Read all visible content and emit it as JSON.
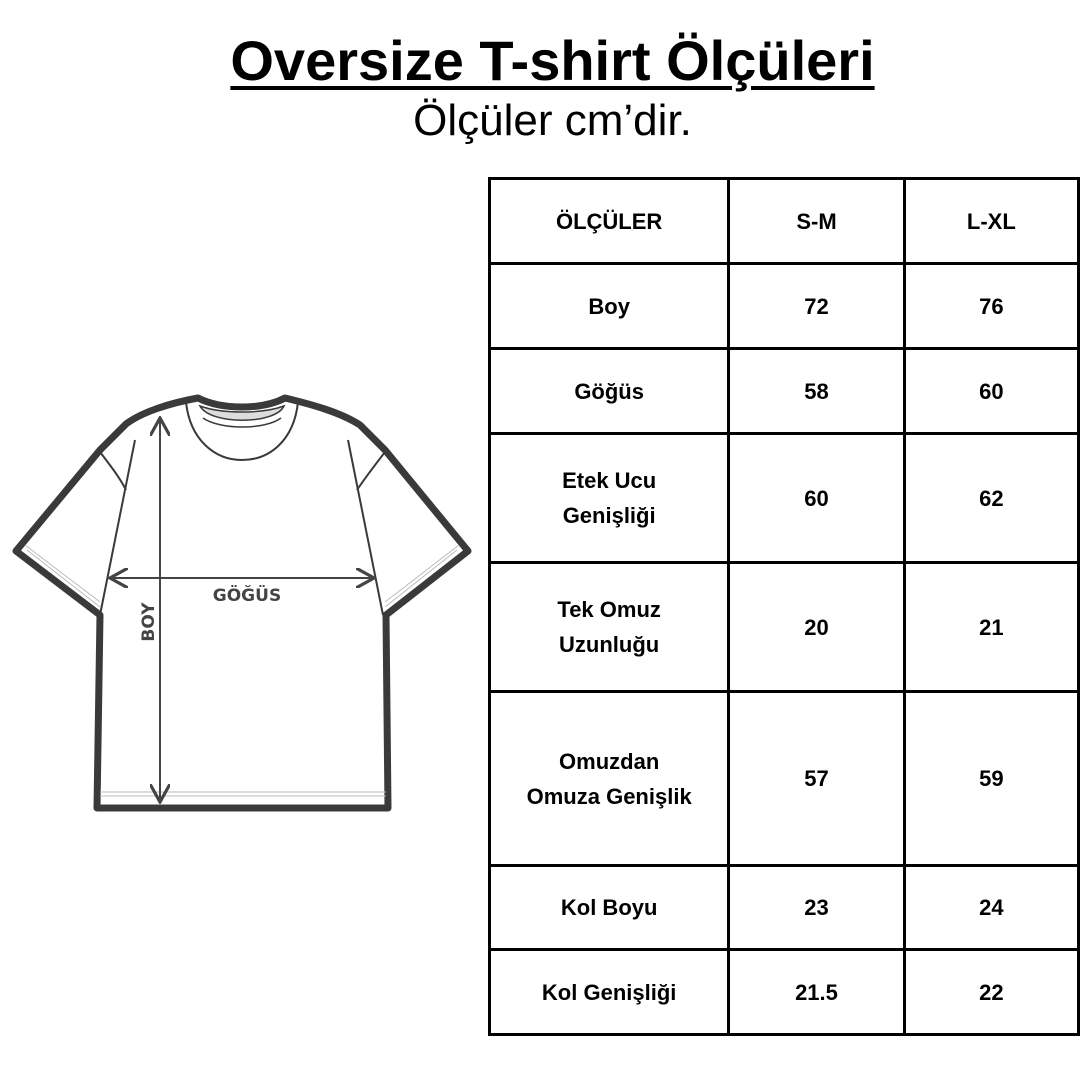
{
  "title": "Oversize T-shirt Ölçüleri",
  "subtitle": "Ölçüler cm’dir.",
  "diagram": {
    "chest_label": "GÖĞÜS",
    "length_label": "BOY"
  },
  "table": {
    "headers": [
      "ÖLÇÜLER",
      "S-M",
      "L-XL"
    ],
    "rows": [
      {
        "label": "Boy",
        "sm": "72",
        "lxl": "76"
      },
      {
        "label": "Göğüs",
        "sm": "58",
        "lxl": "60"
      },
      {
        "label": "Etek Ucu Genişliği",
        "sm": "60",
        "lxl": "62"
      },
      {
        "label": "Tek Omuz Uzunluğu",
        "sm": "20",
        "lxl": "21"
      },
      {
        "label": "Omuzdan Omuza Genişlik",
        "sm": "57",
        "lxl": "59"
      },
      {
        "label": "Kol Boyu",
        "sm": "23",
        "lxl": "24"
      },
      {
        "label": "Kol Genişliği",
        "sm": "21.5",
        "lxl": "22"
      }
    ]
  }
}
